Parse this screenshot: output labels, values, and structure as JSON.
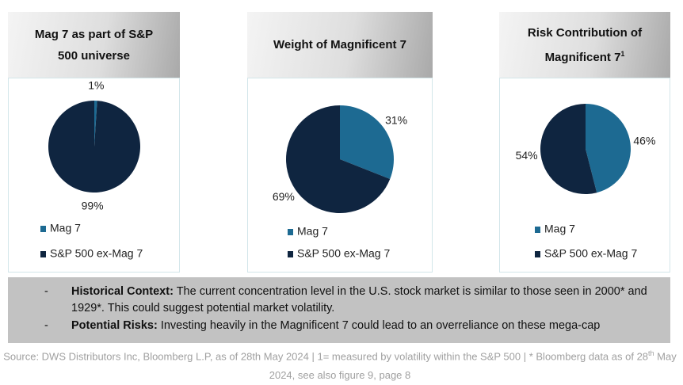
{
  "chart_data": [
    {
      "type": "pie",
      "title": "Mag 7 as part of S&P 500 universe",
      "categories": [
        "Mag 7",
        "S&P 500 ex-Mag 7"
      ],
      "values": [
        1,
        99
      ],
      "value_labels": [
        "1%",
        "99%"
      ],
      "colors": [
        "#1d6a92",
        "#0f2540"
      ]
    },
    {
      "type": "pie",
      "title": "Weight of Magnificent 7",
      "categories": [
        "Mag 7",
        "S&P 500 ex-Mag 7"
      ],
      "values": [
        31,
        69
      ],
      "value_labels": [
        "31%",
        "69%"
      ],
      "colors": [
        "#1d6a92",
        "#0f2540"
      ]
    },
    {
      "type": "pie",
      "title": "Risk Contribution of Magnificent 7",
      "title_note": "1",
      "categories": [
        "Mag 7",
        "S&P 500 ex-Mag 7"
      ],
      "values": [
        46,
        54
      ],
      "value_labels": [
        "46%",
        "54%"
      ],
      "colors": [
        "#1d6a92",
        "#0f2540"
      ]
    }
  ],
  "notes": [
    {
      "label": "Historical Context:",
      "text": "The current concentration level in the U.S. stock market is similar to those seen in 2000* and 1929*. This could suggest potential market volatility."
    },
    {
      "label": "Potential Risks:",
      "text": "Investing heavily in the Magnificent 7 could lead to an overreliance on these mega-cap"
    }
  ],
  "bullet": "-",
  "source": [
    "Source: DWS Distributors Inc, Bloomberg L.P, as of 28th May 2024 | 1= measured by volatility within the S&P 500 | * Bloomberg data as of 28",
    "th",
    " May 2024, see also figure 9, page 8"
  ]
}
